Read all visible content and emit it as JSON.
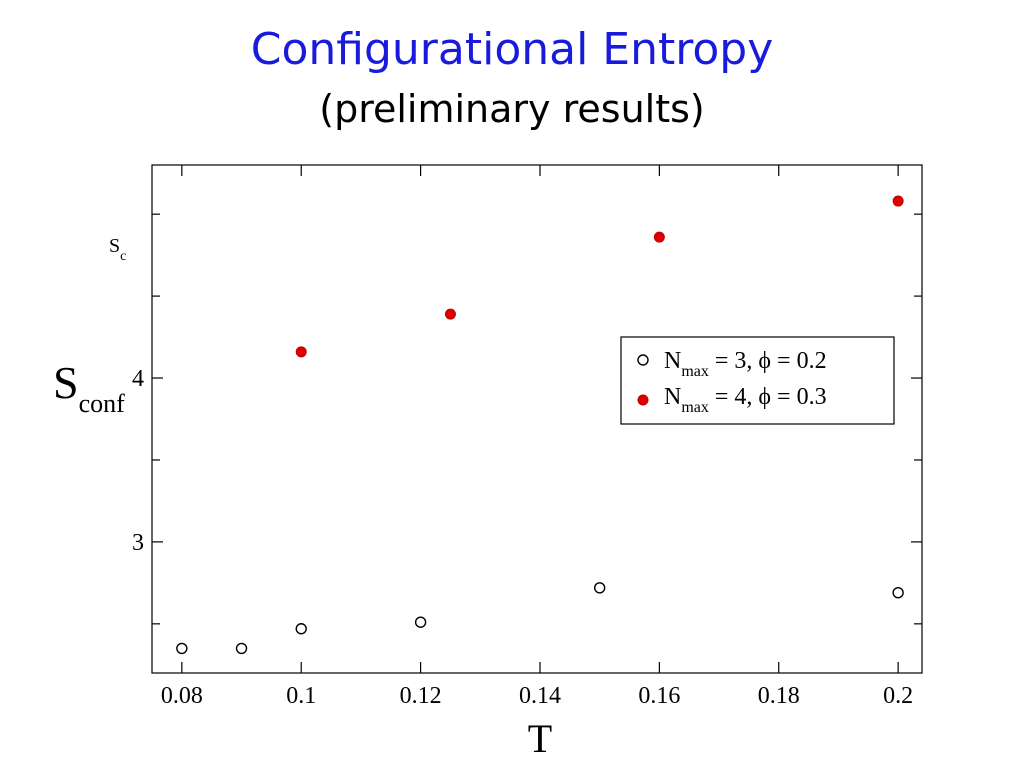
{
  "slide": {
    "title": "Configurational Entropy",
    "subtitle": "(preliminary results)"
  },
  "colors": {
    "title": "#1a1adc",
    "series_filled": "#e00000"
  },
  "chart_data": {
    "type": "scatter",
    "xlabel": "T",
    "ylabel_main": "S",
    "ylabel_main_sub": "conf",
    "ylabel_alt": "S",
    "ylabel_alt_sub": "c",
    "xlim": [
      0.075,
      0.204
    ],
    "ylim": [
      2.2,
      5.3
    ],
    "x_ticks": [
      0.08,
      0.1,
      0.12,
      0.14,
      0.16,
      0.18,
      0.2
    ],
    "x_tick_labels": [
      "0.08",
      "0.1",
      "0.12",
      "0.14",
      "0.16",
      "0.18",
      "0.2"
    ],
    "y_ticks": [
      3,
      4
    ],
    "y_tick_labels": [
      "3",
      "4"
    ],
    "y_minor_ticks": [
      2.5,
      3.5,
      4.5,
      5.0
    ],
    "grid": false,
    "legend_position": "right",
    "series": [
      {
        "legend_main": "N",
        "legend_sub": "max",
        "legend_rest": " = 3,  ϕ = 0.2",
        "marker": "open-circle",
        "x": [
          0.08,
          0.09,
          0.1,
          0.12,
          0.15,
          0.2
        ],
        "y": [
          2.35,
          2.35,
          2.47,
          2.51,
          2.72,
          2.69
        ]
      },
      {
        "legend_main": "N",
        "legend_sub": "max",
        "legend_rest": " = 4,  ϕ = 0.3",
        "marker": "filled-circle",
        "x": [
          0.1,
          0.125,
          0.16,
          0.2
        ],
        "y": [
          4.16,
          4.39,
          4.86,
          5.08
        ]
      }
    ]
  }
}
